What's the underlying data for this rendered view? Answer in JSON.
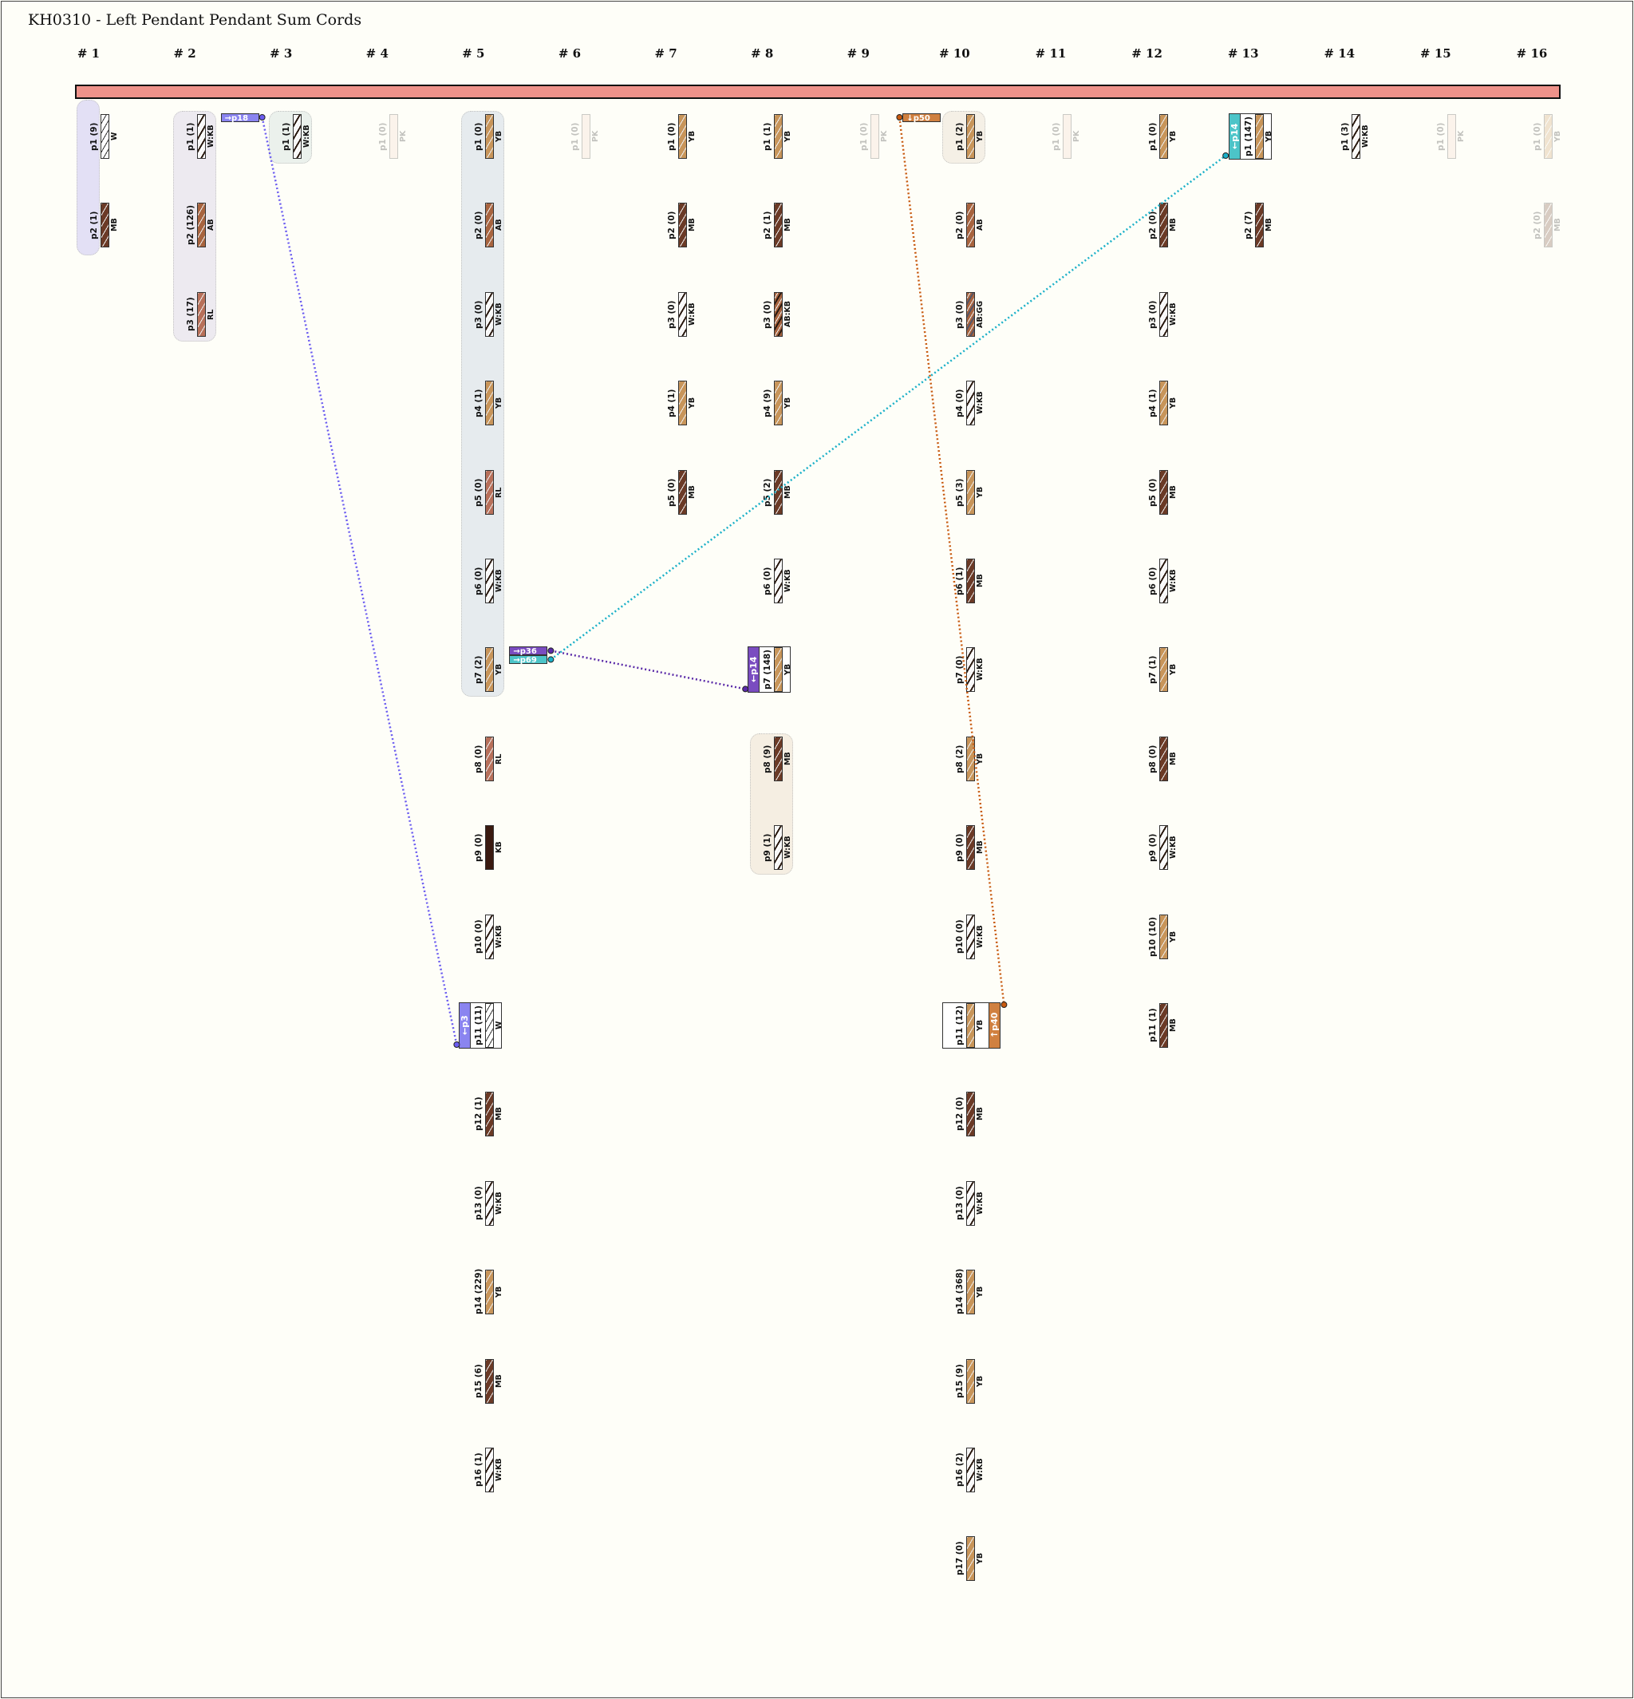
{
  "title": "KH0310 - Left Pendant Pendant Sum Cords",
  "colors": {
    "YB": "#c8955a",
    "MB": "#6b3a26",
    "AB": "#a8643f",
    "RL": "#b8705a",
    "KB": "#3a1a10",
    "W": "#ffffff",
    "W:KB": "#ffffff",
    "AB:KB": "#a8643f",
    "AB:GG": "#8a6a4a",
    "PK": "#f4d4c8",
    "top_cord": "#ee928a",
    "link_blue": "#6b5cf0",
    "link_purple": "#5a2aa8",
    "link_teal": "#1ab0c8",
    "link_orange": "#c85a10"
  },
  "columns": [
    {
      "header": "# 1",
      "cords": [
        {
          "label": "p1 (9)",
          "color": "W"
        },
        {
          "label": "p2 (1)",
          "color": "MB"
        }
      ]
    },
    {
      "header": "# 2",
      "cords": [
        {
          "label": "p1 (1)",
          "color": "W:KB"
        },
        {
          "label": "p2 (126)",
          "color": "AB"
        },
        {
          "label": "p3 (17)",
          "color": "RL"
        }
      ]
    },
    {
      "header": "# 3",
      "cords": [
        {
          "label": "p1 (1)",
          "color": "W:KB"
        }
      ]
    },
    {
      "header": "# 4",
      "cords": [
        {
          "label": "p1 (0)",
          "color": "PK",
          "faded": true
        }
      ]
    },
    {
      "header": "# 5",
      "cords": [
        {
          "label": "p1 (0)",
          "color": "YB"
        },
        {
          "label": "p2 (0)",
          "color": "AB"
        },
        {
          "label": "p3 (0)",
          "color": "W:KB"
        },
        {
          "label": "p4 (1)",
          "color": "YB"
        },
        {
          "label": "p5 (0)",
          "color": "RL"
        },
        {
          "label": "p6 (0)",
          "color": "W:KB"
        },
        {
          "label": "p7 (2)",
          "color": "YB"
        },
        {
          "label": "p8 (0)",
          "color": "RL"
        },
        {
          "label": "p9 (0)",
          "color": "KB"
        },
        {
          "label": "p10 (0)",
          "color": "W:KB"
        },
        {
          "label": "p11 (11)",
          "color": "W"
        },
        {
          "label": "p12 (1)",
          "color": "MB"
        },
        {
          "label": "p13 (0)",
          "color": "W:KB"
        },
        {
          "label": "p14 (229)",
          "color": "YB"
        },
        {
          "label": "p15 (6)",
          "color": "MB"
        },
        {
          "label": "p16 (1)",
          "color": "W:KB"
        }
      ]
    },
    {
      "header": "# 6",
      "cords": [
        {
          "label": "p1 (0)",
          "color": "PK",
          "faded": true
        }
      ]
    },
    {
      "header": "# 7",
      "cords": [
        {
          "label": "p1 (0)",
          "color": "YB"
        },
        {
          "label": "p2 (0)",
          "color": "MB"
        },
        {
          "label": "p3 (0)",
          "color": "W:KB"
        },
        {
          "label": "p4 (1)",
          "color": "YB"
        },
        {
          "label": "p5 (0)",
          "color": "MB"
        }
      ]
    },
    {
      "header": "# 8",
      "cords": [
        {
          "label": "p1 (1)",
          "color": "YB"
        },
        {
          "label": "p2 (1)",
          "color": "MB"
        },
        {
          "label": "p3 (0)",
          "color": "AB:KB"
        },
        {
          "label": "p4 (9)",
          "color": "YB"
        },
        {
          "label": "p5 (2)",
          "color": "MB"
        },
        {
          "label": "p6 (0)",
          "color": "W:KB"
        },
        {
          "label": "p7 (148)",
          "color": "YB"
        },
        {
          "label": "p8 (9)",
          "color": "MB"
        },
        {
          "label": "p9 (1)",
          "color": "W:KB"
        }
      ]
    },
    {
      "header": "# 9",
      "cords": [
        {
          "label": "p1 (0)",
          "color": "PK",
          "faded": true
        }
      ]
    },
    {
      "header": "# 10",
      "cords": [
        {
          "label": "p1 (2)",
          "color": "YB"
        },
        {
          "label": "p2 (0)",
          "color": "AB"
        },
        {
          "label": "p3 (0)",
          "color": "AB:GG"
        },
        {
          "label": "p4 (0)",
          "color": "W:KB"
        },
        {
          "label": "p5 (3)",
          "color": "YB"
        },
        {
          "label": "p6 (1)",
          "color": "MB"
        },
        {
          "label": "p7 (0)",
          "color": "W:KB"
        },
        {
          "label": "p8 (2)",
          "color": "YB"
        },
        {
          "label": "p9 (0)",
          "color": "MB"
        },
        {
          "label": "p10 (0)",
          "color": "W:KB"
        },
        {
          "label": "p11 (12)",
          "color": "YB"
        },
        {
          "label": "p12 (0)",
          "color": "MB"
        },
        {
          "label": "p13 (0)",
          "color": "W:KB"
        },
        {
          "label": "p14 (368)",
          "color": "YB"
        },
        {
          "label": "p15 (9)",
          "color": "YB"
        },
        {
          "label": "p16 (2)",
          "color": "W:KB"
        },
        {
          "label": "p17 (0)",
          "color": "YB"
        }
      ]
    },
    {
      "header": "# 11",
      "cords": [
        {
          "label": "p1 (0)",
          "color": "PK",
          "faded": true
        }
      ]
    },
    {
      "header": "# 12",
      "cords": [
        {
          "label": "p1 (0)",
          "color": "YB"
        },
        {
          "label": "p2 (0)",
          "color": "MB"
        },
        {
          "label": "p3 (0)",
          "color": "W:KB"
        },
        {
          "label": "p4 (1)",
          "color": "YB"
        },
        {
          "label": "p5 (0)",
          "color": "MB"
        },
        {
          "label": "p6 (0)",
          "color": "W:KB"
        },
        {
          "label": "p7 (1)",
          "color": "YB"
        },
        {
          "label": "p8 (0)",
          "color": "MB"
        },
        {
          "label": "p9 (0)",
          "color": "W:KB"
        },
        {
          "label": "p10 (10)",
          "color": "YB"
        },
        {
          "label": "p11 (1)",
          "color": "MB"
        }
      ]
    },
    {
      "header": "# 13",
      "cords": [
        {
          "label": "p1 (147)",
          "color": "YB"
        },
        {
          "label": "p2 (7)",
          "color": "MB"
        }
      ]
    },
    {
      "header": "# 14",
      "cords": [
        {
          "label": "p1 (3)",
          "color": "W:KB"
        }
      ]
    },
    {
      "header": "# 15",
      "cords": [
        {
          "label": "p1 (0)",
          "color": "PK",
          "faded": true
        }
      ]
    },
    {
      "header": "# 16",
      "cords": [
        {
          "label": "p1 (0)",
          "color": "YB",
          "faded": true
        },
        {
          "label": "p2 (0)",
          "color": "MB",
          "faded": true
        }
      ]
    }
  ],
  "sum_boxes": [
    {
      "col": 13,
      "row": 1,
      "ref": "←p14",
      "side": "left",
      "color": "#4cc4c8"
    },
    {
      "col": 8,
      "row": 7,
      "ref": "←p14",
      "side": "left",
      "color": "#7a4cc0"
    },
    {
      "col": 5,
      "row": 11,
      "ref": "←p3",
      "side": "left",
      "color": "#8a84f0"
    },
    {
      "col": 10,
      "row": 11,
      "ref": "↑p40",
      "side": "right",
      "color": "#d08040"
    }
  ],
  "tags": [
    {
      "col": 2,
      "row": 1,
      "ref": "→p18",
      "color": "#8a84f0",
      "slot": 0
    },
    {
      "col": 5,
      "row": 7,
      "ref": "→p36",
      "color": "#7a4cc0",
      "slot": 0
    },
    {
      "col": 5,
      "row": 7,
      "ref": "→p69",
      "color": "#4cc4c8",
      "slot": 1
    },
    {
      "col": 9,
      "row": 1,
      "ref": "↓p50",
      "color": "#d08040",
      "slot": 0
    }
  ],
  "links": [
    {
      "from": "p18",
      "to": "p3",
      "color": "link_blue"
    },
    {
      "from": "p36",
      "to": "p14",
      "color": "link_purple"
    },
    {
      "from": "p69",
      "to": "p14",
      "color": "link_teal"
    },
    {
      "from": "p50",
      "to": "p40",
      "color": "link_orange"
    }
  ]
}
